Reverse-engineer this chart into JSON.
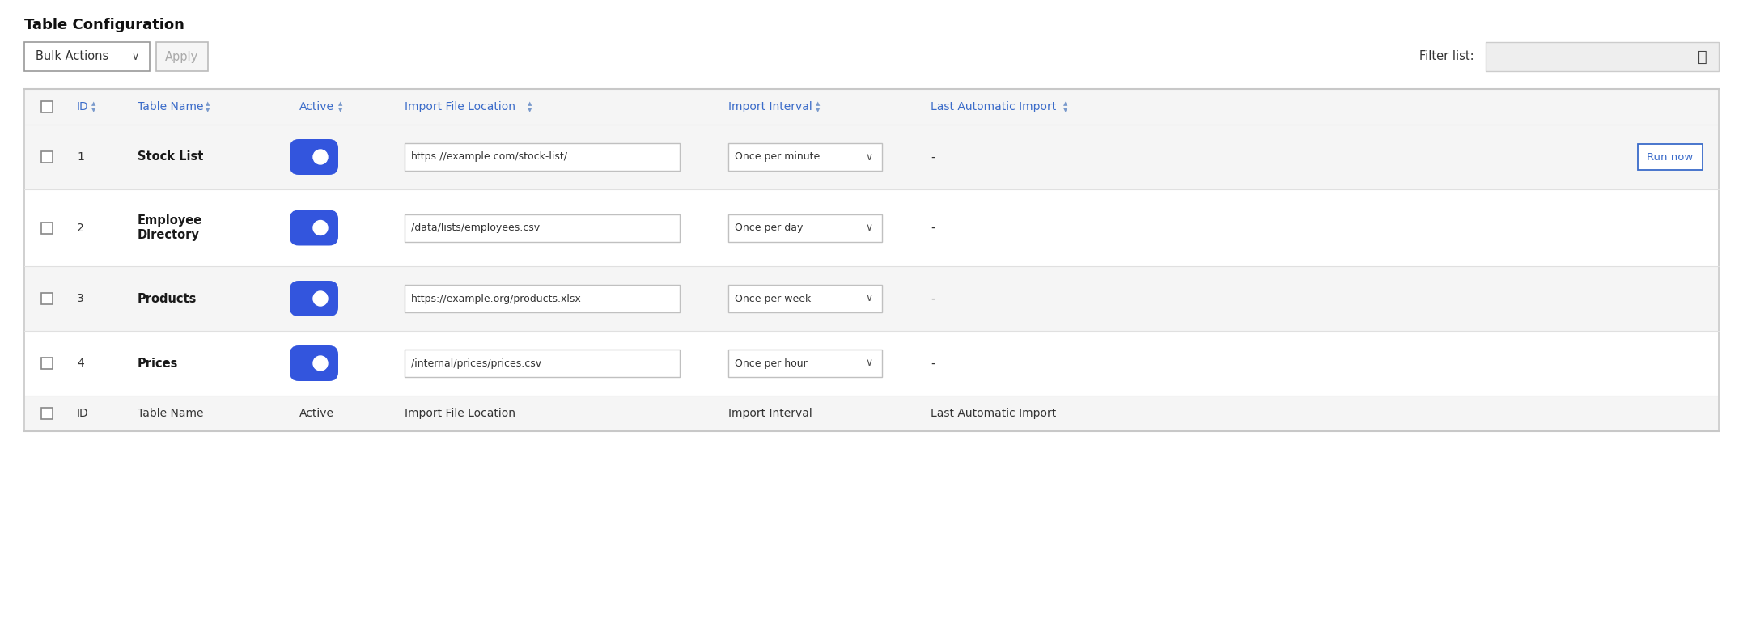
{
  "title": "Table Configuration",
  "bg_color": "#ffffff",
  "header_color": "#3a6bc9",
  "header_bg": "#f8f8f8",
  "row_bg_alt": "#f5f5f5",
  "border_color": "#c8c8c8",
  "row_sep_color": "#e0e0e0",
  "text_dark": "#1a1a1a",
  "text_gray": "#555555",
  "toggle_blue": "#3355dd",
  "run_now_color": "#3a6bc9",
  "input_border": "#c0c0c0",
  "bulk_actions": "Bulk Actions",
  "apply": "Apply",
  "filter_label": "Filter list:",
  "col_headers": [
    "ID",
    "Table Name",
    "Active",
    "Import File Location",
    "Import Interval",
    "Last Automatic Import"
  ],
  "rows": [
    {
      "id": "1",
      "name": [
        "Stock List"
      ],
      "bold": true,
      "active": true,
      "file": "https://example.com/stock-list/",
      "interval": "Once per minute",
      "last": "-",
      "run_now": true
    },
    {
      "id": "2",
      "name": [
        "Employee",
        "Directory"
      ],
      "bold": true,
      "active": true,
      "file": "/data/lists/employees.csv",
      "interval": "Once per day",
      "last": "-",
      "run_now": false
    },
    {
      "id": "3",
      "name": [
        "Products"
      ],
      "bold": true,
      "active": true,
      "file": "https://example.org/products.xlsx",
      "interval": "Once per week",
      "last": "-",
      "run_now": false
    },
    {
      "id": "4",
      "name": [
        "Prices"
      ],
      "bold": true,
      "active": true,
      "file": "/internal/prices/prices.csv",
      "interval": "Once per hour",
      "last": "-",
      "run_now": false
    }
  ],
  "footer": {
    "id": "ID",
    "name": "Table Name",
    "active": "Active",
    "file": "Import File Location",
    "interval": "Import Interval",
    "last": "Last Automatic Import"
  },
  "figw": 21.54,
  "figh": 7.7,
  "dpi": 100
}
